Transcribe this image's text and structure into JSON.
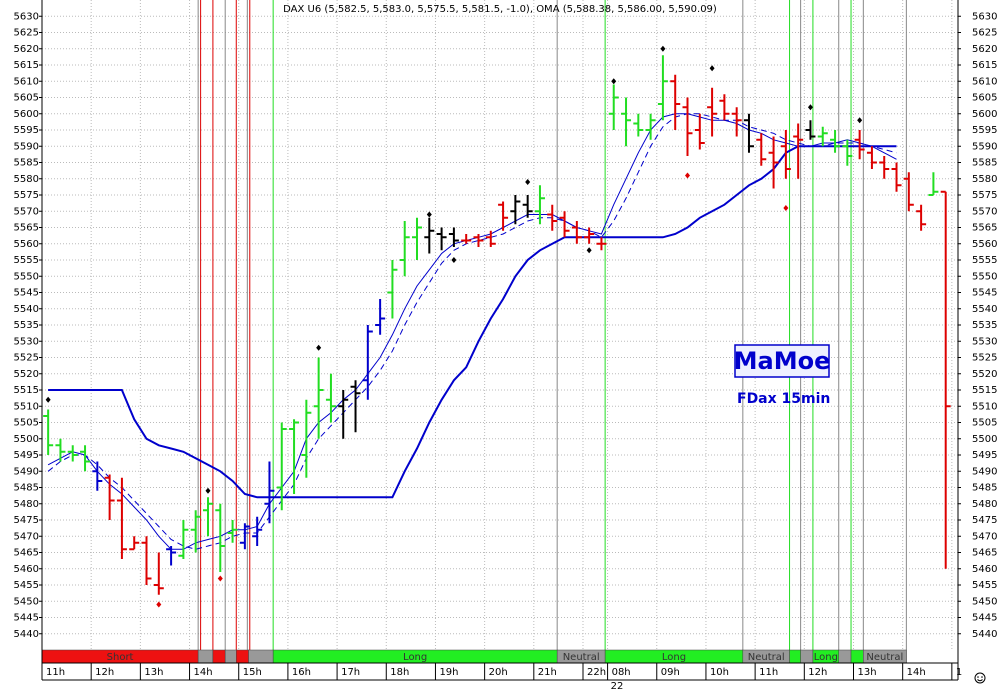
{
  "chart_data": {
    "type": "ohlc",
    "title": "DAX U6 (5,582.5, 5,583.0, 5,575.5, 5,581.5, -1.0), OMA (5,588.38, 5,586.00, 5,590.09)",
    "watermark": "MaMoe",
    "subtitle": "FDax 15min",
    "date_label": "22",
    "xlim": [
      -0.5,
      74
    ],
    "ylim": [
      5435,
      5635
    ],
    "grid": true,
    "yticks": [
      5440,
      5445,
      5450,
      5455,
      5460,
      5465,
      5470,
      5475,
      5480,
      5485,
      5490,
      5495,
      5500,
      5505,
      5510,
      5515,
      5520,
      5525,
      5530,
      5535,
      5540,
      5545,
      5550,
      5555,
      5560,
      5565,
      5570,
      5575,
      5580,
      5585,
      5590,
      5595,
      5600,
      5605,
      5610,
      5615,
      5620,
      5625,
      5630
    ],
    "xticks": [
      {
        "value": -0.5,
        "label": "11h"
      },
      {
        "value": 3.5,
        "label": "12h"
      },
      {
        "value": 7.5,
        "label": "13h"
      },
      {
        "value": 11.5,
        "label": "14h"
      },
      {
        "value": 15.5,
        "label": "15h"
      },
      {
        "value": 19.5,
        "label": "16h"
      },
      {
        "value": 23.5,
        "label": "17h"
      },
      {
        "value": 27.5,
        "label": "18h"
      },
      {
        "value": 31.5,
        "label": "19h"
      },
      {
        "value": 35.5,
        "label": "20h"
      },
      {
        "value": 39.5,
        "label": "21h"
      },
      {
        "value": 43.5,
        "label": "22h"
      },
      {
        "value": 45.5,
        "label": "08h"
      },
      {
        "value": 49.5,
        "label": "09h"
      },
      {
        "value": 53.5,
        "label": "10h"
      },
      {
        "value": 57.5,
        "label": "11h"
      },
      {
        "value": 61.5,
        "label": "12h"
      },
      {
        "value": 65.5,
        "label": "13h"
      },
      {
        "value": 69.5,
        "label": "14h"
      },
      {
        "value": 73.5,
        "label": "1"
      }
    ],
    "bars": {
      "open": [
        5507,
        5498,
        5496,
        5496,
        5490,
        5488,
        5481,
        5466,
        5468,
        5455,
        5466,
        5464,
        5472,
        5478,
        5478,
        5471,
        5468,
        5470,
        5480,
        5485,
        5503,
        5495,
        5510,
        5512,
        5510,
        5516,
        5518,
        5535,
        5545,
        5555,
        5562,
        5562,
        5563,
        5563,
        5561,
        5562,
        5562,
        5572,
        5570,
        5572,
        5570,
        5569,
        5568,
        5565,
        5562,
        5560,
        5600,
        5600,
        5597,
        5595,
        5603,
        5610,
        5602,
        5595,
        5602,
        5604,
        5600,
        5598,
        5592,
        5588,
        5590,
        5593,
        5595,
        5593,
        5592,
        5590,
        5592,
        5588,
        5585,
        5583,
        5580,
        5570,
        5575,
        5576
      ],
      "high": [
        5509,
        5500,
        5498,
        5498,
        5493,
        5489,
        5488,
        5470,
        5470,
        5465,
        5467,
        5475,
        5478,
        5482,
        5480,
        5475,
        5474,
        5476,
        5493,
        5505,
        5506,
        5512,
        5525,
        5520,
        5515,
        5518,
        5535,
        5543,
        5555,
        5567,
        5568,
        5568,
        5565,
        5565,
        5563,
        5563,
        5564,
        5573,
        5575,
        5575,
        5578,
        5572,
        5570,
        5567,
        5565,
        5562,
        5609,
        5605,
        5600,
        5600,
        5618,
        5612,
        5605,
        5600,
        5608,
        5606,
        5602,
        5600,
        5594,
        5593,
        5595,
        5597,
        5598,
        5596,
        5595,
        5592,
        5595,
        5590,
        5587,
        5585,
        5582,
        5572,
        5582,
        5576
      ],
      "low": [
        5495,
        5493,
        5493,
        5490,
        5484,
        5475,
        5463,
        5466,
        5455,
        5452,
        5461,
        5463,
        5465,
        5470,
        5459,
        5468,
        5466,
        5467,
        5474,
        5478,
        5483,
        5488,
        5500,
        5505,
        5500,
        5502,
        5512,
        5532,
        5537,
        5550,
        5555,
        5557,
        5558,
        5559,
        5560,
        5559,
        5559,
        5564,
        5566,
        5568,
        5566,
        5564,
        5562,
        5560,
        5560,
        5558,
        5595,
        5590,
        5593,
        5592,
        5598,
        5595,
        5587,
        5589,
        5593,
        5598,
        5593,
        5588,
        5584,
        5577,
        5580,
        5580,
        5592,
        5590,
        5588,
        5584,
        5586,
        5583,
        5580,
        5576,
        5570,
        5564,
        5575,
        5460
      ],
      "close": [
        5498,
        5496,
        5495,
        5493,
        5487,
        5481,
        5466,
        5468,
        5457,
        5454,
        5465,
        5472,
        5476,
        5480,
        5467,
        5472,
        5473,
        5472,
        5484,
        5503,
        5505,
        5508,
        5515,
        5510,
        5512,
        5514,
        5533,
        5537,
        5552,
        5562,
        5565,
        5564,
        5562,
        5561,
        5561,
        5561,
        5560,
        5568,
        5573,
        5570,
        5574,
        5567,
        5564,
        5562,
        5563,
        5560,
        5605,
        5598,
        5595,
        5598,
        5610,
        5603,
        5594,
        5591,
        5600,
        5600,
        5598,
        5590,
        5586,
        5585,
        5583,
        5592,
        5593,
        5594,
        5590,
        5587,
        5589,
        5585,
        5583,
        5578,
        5572,
        5566,
        5576,
        5510
      ],
      "colors": [
        "#22dd22",
        "#22dd22",
        "#22dd22",
        "#22dd22",
        "#0000cc",
        "#dd0000",
        "#dd0000",
        "#dd0000",
        "#dd0000",
        "#dd0000",
        "#0000cc",
        "#22dd22",
        "#22dd22",
        "#22dd22",
        "#22dd22",
        "#22dd22",
        "#0000cc",
        "#0000cc",
        "#0000cc",
        "#22dd22",
        "#22dd22",
        "#22dd22",
        "#22dd22",
        "#22dd22",
        "#000000",
        "#000000",
        "#0000cc",
        "#0000cc",
        "#22dd22",
        "#22dd22",
        "#22dd22",
        "#000000",
        "#000000",
        "#000000",
        "#dd0000",
        "#dd0000",
        "#dd0000",
        "#dd0000",
        "#000000",
        "#000000",
        "#22dd22",
        "#dd0000",
        "#dd0000",
        "#dd0000",
        "#dd0000",
        "#dd0000",
        "#22dd22",
        "#22dd22",
        "#22dd22",
        "#22dd22",
        "#22dd22",
        "#dd0000",
        "#dd0000",
        "#dd0000",
        "#dd0000",
        "#dd0000",
        "#dd0000",
        "#000000",
        "#dd0000",
        "#dd0000",
        "#dd0000",
        "#dd0000",
        "#000000",
        "#22dd22",
        "#22dd22",
        "#22dd22",
        "#dd0000",
        "#dd0000",
        "#dd0000",
        "#dd0000",
        "#dd0000",
        "#dd0000",
        "#22dd22",
        "#dd0000"
      ]
    },
    "lines": [
      {
        "color": "#0000cc",
        "width": 2,
        "dash": false,
        "values": [
          5515,
          5515,
          5515,
          5515,
          5515,
          5515,
          5515,
          5506,
          5500,
          5498,
          5497,
          5496,
          5494,
          5492,
          5490,
          5487,
          5483,
          5482,
          5482,
          5482,
          5482,
          5482,
          5482,
          5482,
          5482,
          5482,
          5482,
          5482,
          5482,
          5490,
          5497,
          5505,
          5512,
          5518,
          5522,
          5530,
          5537,
          5543,
          5550,
          5555,
          5558,
          5560,
          5562,
          5562,
          5562,
          5562,
          5562,
          5562,
          5562,
          5562,
          5562,
          5563,
          5565,
          5568,
          5570,
          5572,
          5575,
          5578,
          5580,
          5583,
          5588,
          5590,
          5590,
          5590,
          5590,
          5590,
          5590,
          5590,
          5590,
          5590,
          null,
          null,
          null,
          null
        ]
      },
      {
        "color": "#0000cc",
        "width": 1,
        "dash": false,
        "values": [
          5492,
          5494,
          5496,
          5495,
          5490,
          5486,
          5483,
          5479,
          5475,
          5470,
          5466,
          5466,
          5468,
          5469,
          5470,
          5472,
          5472,
          5473,
          5480,
          5485,
          5490,
          5500,
          5505,
          5508,
          5512,
          5515,
          5520,
          5525,
          5532,
          5540,
          5547,
          5552,
          5557,
          5560,
          5561,
          5562,
          5563,
          5565,
          5567,
          5569,
          5569,
          5569,
          5567,
          5565,
          5564,
          5563,
          5572,
          5580,
          5588,
          5595,
          5599,
          5600,
          5600,
          5599,
          5598,
          5598,
          5597,
          5595,
          5594,
          5592,
          5591,
          5590,
          5590,
          5591,
          5591,
          5592,
          5591,
          5590,
          5588,
          5586,
          null,
          null,
          null,
          null
        ]
      },
      {
        "color": "#0000cc",
        "width": 1,
        "dash": true,
        "values": [
          5490,
          5493,
          5495,
          5495,
          5492,
          5488,
          5485,
          5481,
          5477,
          5473,
          5469,
          5467,
          5466,
          5467,
          5468,
          5470,
          5471,
          5471,
          5476,
          5481,
          5486,
          5494,
          5500,
          5504,
          5508,
          5512,
          5516,
          5521,
          5527,
          5535,
          5542,
          5548,
          5554,
          5558,
          5560,
          5561,
          5562,
          5563,
          5565,
          5567,
          5568,
          5568,
          5567,
          5565,
          5564,
          5562,
          5567,
          5574,
          5582,
          5590,
          5596,
          5599,
          5600,
          5600,
          5599,
          5598,
          5598,
          5596,
          5595,
          5594,
          5592,
          5591,
          5590,
          5590,
          5591,
          5591,
          5591,
          5590,
          5589,
          5588,
          null,
          null,
          null,
          null
        ]
      }
    ],
    "pivots": {
      "x": [
        0,
        9,
        13,
        14,
        22,
        31,
        33,
        39,
        44,
        46,
        50,
        52,
        54,
        60,
        62,
        66
      ],
      "values": [
        5512,
        5449,
        5484,
        5457,
        5528,
        5569,
        5555,
        5579,
        5558,
        5610,
        5620,
        5581,
        5614,
        5571,
        5602,
        5598
      ],
      "colors": [
        "#000000",
        "#dd0000",
        "#000000",
        "#dd0000",
        "#000000",
        "#000000",
        "#000000",
        "#000000",
        "#000000",
        "#000000",
        "#000000",
        "#dd0000",
        "#000000",
        "#dd0000",
        "#000000",
        "#000000"
      ]
    },
    "signal_lines": [
      {
        "x": 12.2,
        "color": "#888888"
      },
      {
        "x": 12.4,
        "color": "#dd0000"
      },
      {
        "x": 13.4,
        "color": "#dd0000"
      },
      {
        "x": 14.4,
        "color": "#888888"
      },
      {
        "x": 15.3,
        "color": "#dd0000"
      },
      {
        "x": 16.2,
        "color": "#888888"
      },
      {
        "x": 16.4,
        "color": "#dd0000"
      },
      {
        "x": 18.3,
        "color": "#22dd22"
      },
      {
        "x": 41.4,
        "color": "#888888"
      },
      {
        "x": 45.3,
        "color": "#22dd22"
      },
      {
        "x": 56.5,
        "color": "#888888"
      },
      {
        "x": 60.3,
        "color": "#22dd22"
      },
      {
        "x": 61.2,
        "color": "#888888"
      },
      {
        "x": 62.2,
        "color": "#22dd22"
      },
      {
        "x": 64.3,
        "color": "#888888"
      },
      {
        "x": 65.3,
        "color": "#22dd22"
      },
      {
        "x": 66.3,
        "color": "#888888"
      },
      {
        "x": 69.8,
        "color": "#888888"
      }
    ],
    "regimes": [
      {
        "from": -0.5,
        "to": 12.2,
        "color": "#ee1111",
        "label": "Short"
      },
      {
        "from": 12.2,
        "to": 13.4,
        "color": "#999999"
      },
      {
        "from": 13.4,
        "to": 14.4,
        "color": "#ee1111"
      },
      {
        "from": 14.4,
        "to": 15.3,
        "color": "#999999"
      },
      {
        "from": 15.3,
        "to": 16.3,
        "color": "#ee1111"
      },
      {
        "from": 16.3,
        "to": 18.3,
        "color": "#999999"
      },
      {
        "from": 18.3,
        "to": 41.4,
        "color": "#22ee22",
        "label": "Long"
      },
      {
        "from": 41.4,
        "to": 45.3,
        "color": "#999999",
        "label": "Neutral"
      },
      {
        "from": 45.3,
        "to": 56.5,
        "color": "#22ee22",
        "label": "Long"
      },
      {
        "from": 56.5,
        "to": 60.3,
        "color": "#999999",
        "label": "Neutral"
      },
      {
        "from": 60.3,
        "to": 61.2,
        "color": "#22ee22"
      },
      {
        "from": 61.2,
        "to": 62.2,
        "color": "#999999"
      },
      {
        "from": 62.2,
        "to": 64.3,
        "color": "#22ee22",
        "label": "Long"
      },
      {
        "from": 64.3,
        "to": 65.3,
        "color": "#999999"
      },
      {
        "from": 65.3,
        "to": 66.3,
        "color": "#22ee22"
      },
      {
        "from": 66.3,
        "to": 69.8,
        "color": "#999999",
        "label": "Neutral"
      }
    ]
  }
}
